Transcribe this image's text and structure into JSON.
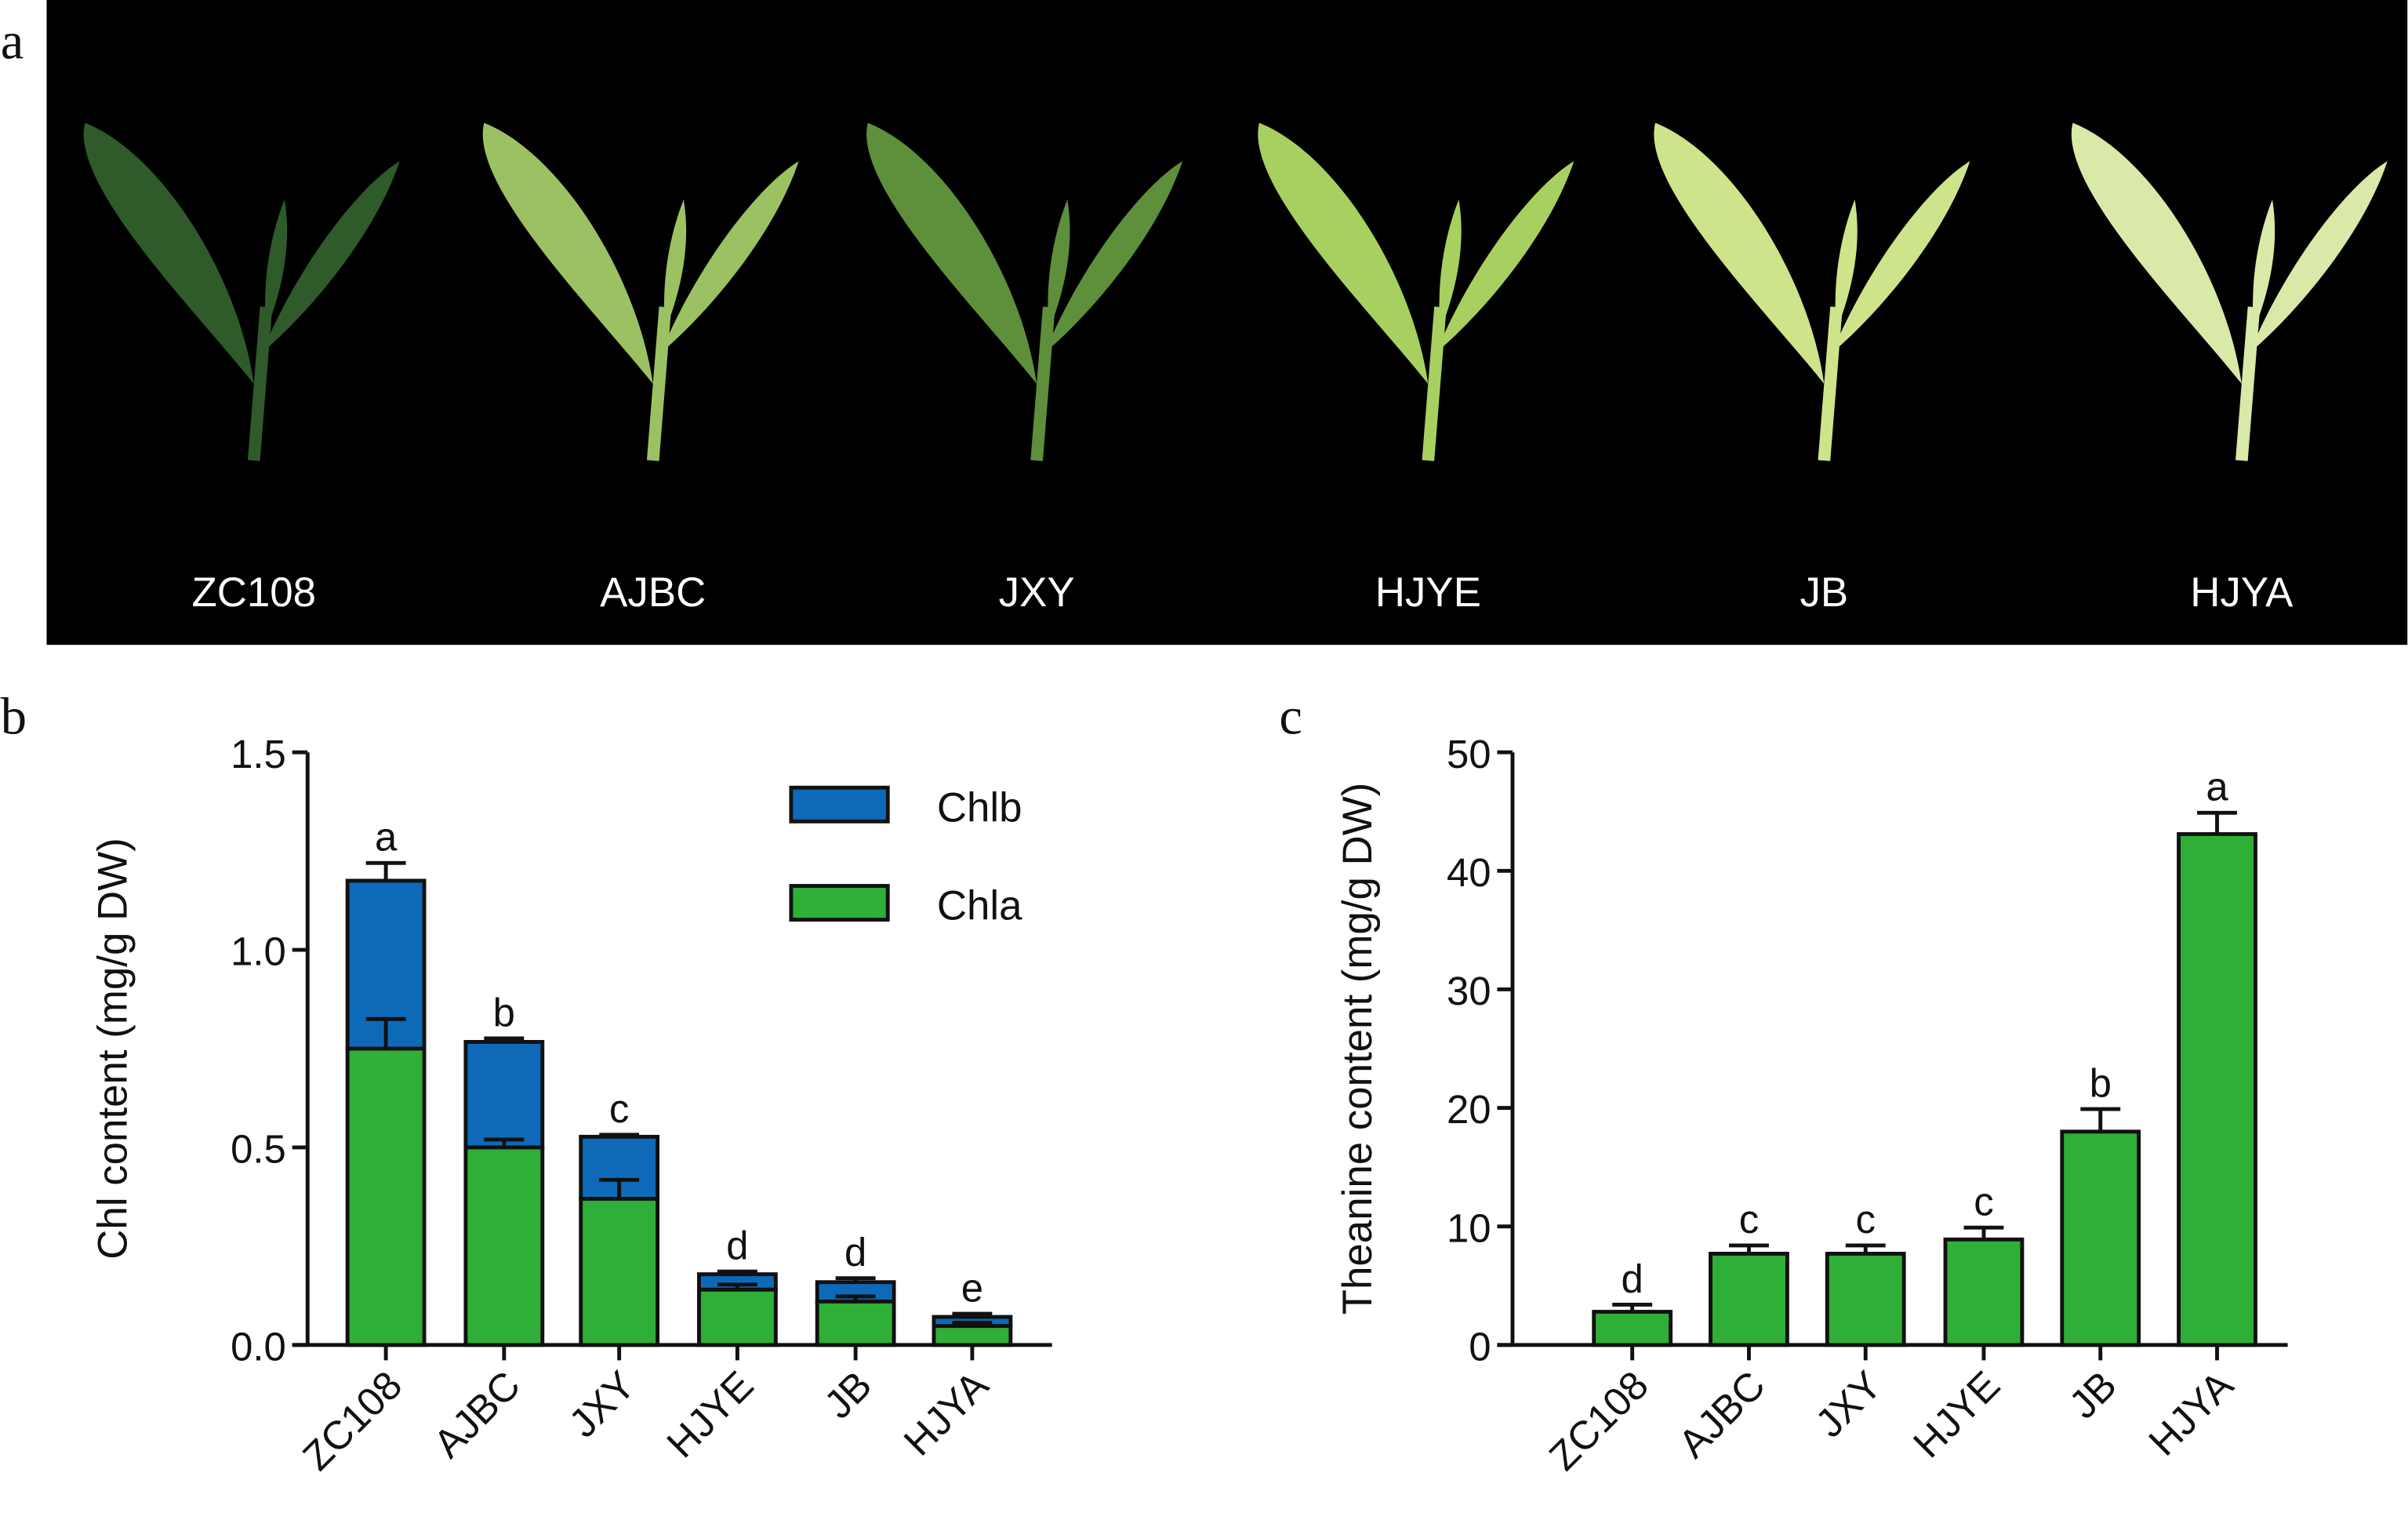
{
  "panel_labels": {
    "a": "a",
    "b": "b",
    "c": "c"
  },
  "photo": {
    "background": "#000000",
    "cultivars": [
      "ZC108",
      "AJBC",
      "JXY",
      "HJYE",
      "JB",
      "HJYA"
    ],
    "leaf_colors": [
      "#2f5a2a",
      "#9cc163",
      "#5e8f3a",
      "#a8d060",
      "#cde48a",
      "#d9e9a8"
    ]
  },
  "colors": {
    "chla": "#2fae38",
    "chlb": "#0e6ab8",
    "axis": "#111111"
  },
  "chart_data": [
    {
      "type": "bar",
      "stacked": true,
      "categories": [
        "ZC108",
        "AJBC",
        "JXY",
        "HJYE",
        "JB",
        "HJYA"
      ],
      "ylabel": "Chl content (mg/g DW)",
      "ylim": [
        0,
        1.5
      ],
      "yticks": [
        "0.0",
        "0.5",
        "1.0",
        "1.5"
      ],
      "ytick_values": [
        0,
        0.5,
        1.0,
        1.5
      ],
      "legend": {
        "placement": "top-right",
        "entries": [
          "Chlb",
          "Chla"
        ]
      },
      "series": [
        {
          "name": "Chla",
          "values": [
            0.75,
            0.5,
            0.37,
            0.14,
            0.11,
            0.048
          ],
          "error_top": [
            0.825,
            0.52,
            0.418,
            0.153,
            0.123,
            0.056
          ]
        },
        {
          "name": "Chlb",
          "totals": [
            1.175,
            0.767,
            0.527,
            0.179,
            0.159,
            0.071
          ],
          "error_top": [
            1.22,
            0.776,
            0.532,
            0.186,
            0.169,
            0.079
          ]
        }
      ],
      "significance": [
        "a",
        "b",
        "c",
        "d",
        "d",
        "e"
      ]
    },
    {
      "type": "bar",
      "categories": [
        "ZC108",
        "AJBC",
        "JXY",
        "HJYE",
        "JB",
        "HJYA"
      ],
      "ylabel": "Theanine content (mg/g DW)",
      "ylim": [
        0,
        50
      ],
      "yticks": [
        "0",
        "10",
        "20",
        "30",
        "40",
        "50"
      ],
      "ytick_values": [
        0,
        10,
        20,
        30,
        40,
        50
      ],
      "values": [
        2.8,
        7.7,
        7.7,
        8.9,
        18.0,
        43.1
      ],
      "error_top": [
        3.4,
        8.4,
        8.4,
        9.9,
        19.9,
        44.9
      ],
      "significance": [
        "d",
        "c",
        "c",
        "c",
        "b",
        "a"
      ]
    }
  ]
}
